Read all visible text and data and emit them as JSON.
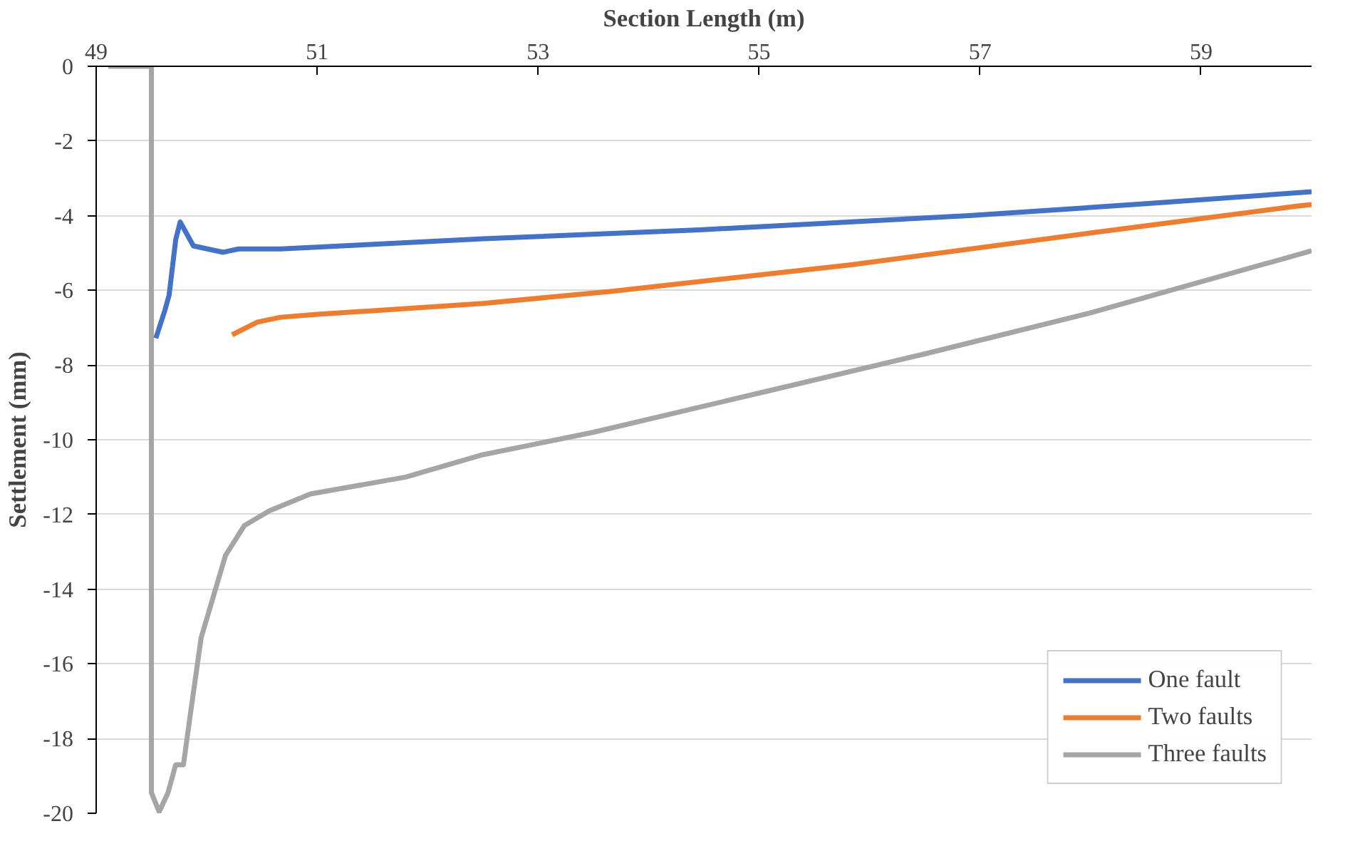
{
  "chart_data": {
    "type": "line",
    "xlabel": "Section Length (m)",
    "ylabel": "Settlement (mm)",
    "xlim": [
      49,
      60
    ],
    "xticks": [
      49,
      51,
      53,
      55,
      57,
      59
    ],
    "ylim": [
      -20,
      0
    ],
    "yticks": [
      0,
      -2,
      -4,
      -6,
      -8,
      -10,
      -12,
      -14,
      -16,
      -18,
      -20
    ],
    "grid": "y",
    "legend": "bottom right",
    "marker": "none",
    "line_style": "solid",
    "series": [
      {
        "name": "One fault",
        "color": "#4472c4",
        "x": [
          49.54,
          49.62,
          49.66,
          49.72,
          49.76,
          49.88,
          50.15,
          50.29,
          50.67,
          51.48,
          52.5,
          54.46,
          56.9,
          58.5,
          60
        ],
        "values": [
          -7.28,
          -6.55,
          -6.13,
          -4.64,
          -4.17,
          -4.81,
          -4.98,
          -4.89,
          -4.89,
          -4.77,
          -4.62,
          -4.38,
          -4.0,
          -3.68,
          -3.36
        ]
      },
      {
        "name": "Two faults",
        "color": "#ed7d31",
        "x": [
          50.23,
          50.46,
          50.67,
          51.0,
          51.48,
          52.5,
          53.65,
          55.82,
          57.98,
          59.85,
          60
        ],
        "values": [
          -7.19,
          -6.85,
          -6.72,
          -6.64,
          -6.55,
          -6.35,
          -6.03,
          -5.32,
          -4.47,
          -3.75,
          -3.7
        ]
      },
      {
        "name": "Three faults",
        "color": "#a5a5a5",
        "x": [
          49.11,
          49.5,
          49.5,
          49.57,
          49.65,
          49.72,
          49.79,
          49.85,
          49.95,
          50.17,
          50.34,
          50.57,
          50.94,
          51.8,
          52.5,
          53.5,
          55.0,
          56.5,
          58.0,
          60
        ],
        "values": [
          0,
          0,
          -19.45,
          -19.96,
          -19.45,
          -18.7,
          -18.7,
          -17.4,
          -15.3,
          -13.1,
          -12.3,
          -11.9,
          -11.45,
          -11.0,
          -10.4,
          -9.8,
          -8.75,
          -7.7,
          -6.6,
          -4.94
        ]
      }
    ]
  }
}
